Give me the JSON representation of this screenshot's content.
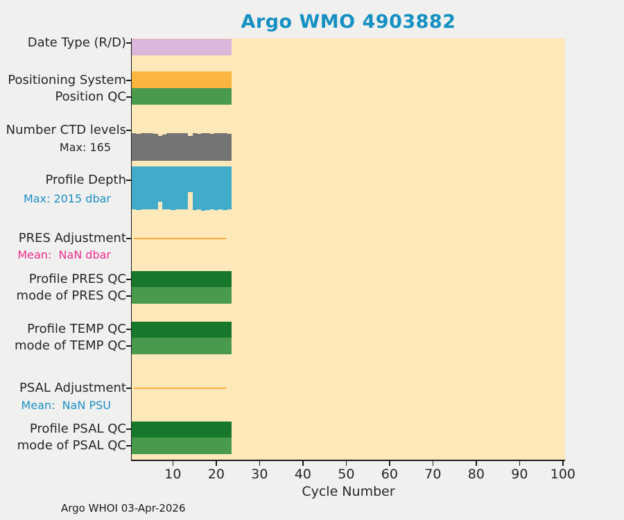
{
  "page": {
    "background": "#f0f0ef",
    "axis_color": "#1a1a1a",
    "text_color": "#262626"
  },
  "header": {
    "title": "Argo WMO 4903882",
    "title_color": "#1590c2"
  },
  "footer": {
    "text": "Argo WHOI 03-Apr-2026"
  },
  "chart_data": {
    "type": "bar",
    "title": "Argo WMO 4903882",
    "xlabel": "Cycle Number",
    "xlim": [
      0.5,
      100.5
    ],
    "x_ticks": [
      10,
      20,
      30,
      40,
      50,
      60,
      70,
      80,
      90,
      100
    ],
    "plot_bg": "#fde8ba",
    "grid": false,
    "legend": "none",
    "cycles": [
      1,
      2,
      3,
      4,
      5,
      6,
      7,
      8,
      9,
      10,
      11,
      12,
      13,
      14,
      15,
      16,
      17,
      18,
      19,
      20,
      21,
      22,
      23
    ],
    "rows": [
      {
        "id": "date-type",
        "label": "Date Type (R/D)",
        "type": "block",
        "color": "#d9b7da",
        "x_start": 0.5,
        "x_end": 23.5
      },
      {
        "id": "positioning-system",
        "label": "Positioning System",
        "type": "block",
        "color": "#fcb640",
        "x_start": 0.5,
        "x_end": 23.5
      },
      {
        "id": "position-qc",
        "label": "Position QC",
        "type": "block",
        "color": "#4a9a4d",
        "x_start": 0.5,
        "x_end": 23.5
      },
      {
        "id": "ctd-levels",
        "label": "Number CTD levels",
        "sub_label": "Max: 165",
        "sub_color": "#262626",
        "type": "bars_up",
        "color": "#757474",
        "max": 165,
        "values": [
          163,
          162,
          164,
          163,
          164,
          162,
          150,
          157,
          165,
          164,
          163,
          164,
          163,
          149,
          163,
          162,
          164,
          163,
          162,
          164,
          163,
          164,
          162
        ]
      },
      {
        "id": "profile-depth",
        "label": "Profile Depth",
        "sub_label": "Max: 2015 dbar",
        "sub_color": "#1b8fc4",
        "type": "bars_down",
        "color": "#41abcb",
        "max": 2015,
        "values": [
          1955,
          1975,
          1945,
          1960,
          1950,
          1965,
          1620,
          1955,
          1945,
          1975,
          1950,
          1960,
          1940,
          1165,
          1980,
          1950,
          2015,
          1970,
          1945,
          1985,
          1955,
          1975,
          1950
        ]
      },
      {
        "id": "pres-adjustment",
        "label": "PRES Adjustment",
        "sub_label": "Mean:  NaN dbar",
        "sub_color": "#ec2b8c",
        "type": "line",
        "color": "#fbab3d",
        "x_start": 1,
        "x_end": 22.3,
        "line_value": 0
      },
      {
        "id": "profile-pres-qc",
        "label": "Profile PRES QC",
        "type": "block",
        "color": "#17782b",
        "x_start": 0.5,
        "x_end": 23.5
      },
      {
        "id": "mode-pres-qc",
        "label": "mode of PRES QC",
        "type": "block",
        "color": "#4a9a4d",
        "x_start": 0.5,
        "x_end": 23.5
      },
      {
        "id": "profile-temp-qc",
        "label": "Profile TEMP QC",
        "type": "block",
        "color": "#17782b",
        "x_start": 0.5,
        "x_end": 23.5
      },
      {
        "id": "mode-temp-qc",
        "label": "mode of TEMP QC",
        "type": "block",
        "color": "#4a9a4d",
        "x_start": 0.5,
        "x_end": 23.5
      },
      {
        "id": "psal-adjustment",
        "label": "PSAL Adjustment",
        "sub_label": "Mean:  NaN PSU",
        "sub_color": "#1b8fc4",
        "type": "line",
        "color": "#fbab3d",
        "x_start": 1,
        "x_end": 22.3,
        "line_value": 0
      },
      {
        "id": "profile-psal-qc",
        "label": "Profile PSAL QC",
        "type": "block",
        "color": "#17782b",
        "x_start": 0.5,
        "x_end": 23.5
      },
      {
        "id": "mode-psal-qc",
        "label": "mode of PSAL QC",
        "type": "block",
        "color": "#4a9a4d",
        "x_start": 0.5,
        "x_end": 23.5
      }
    ]
  }
}
